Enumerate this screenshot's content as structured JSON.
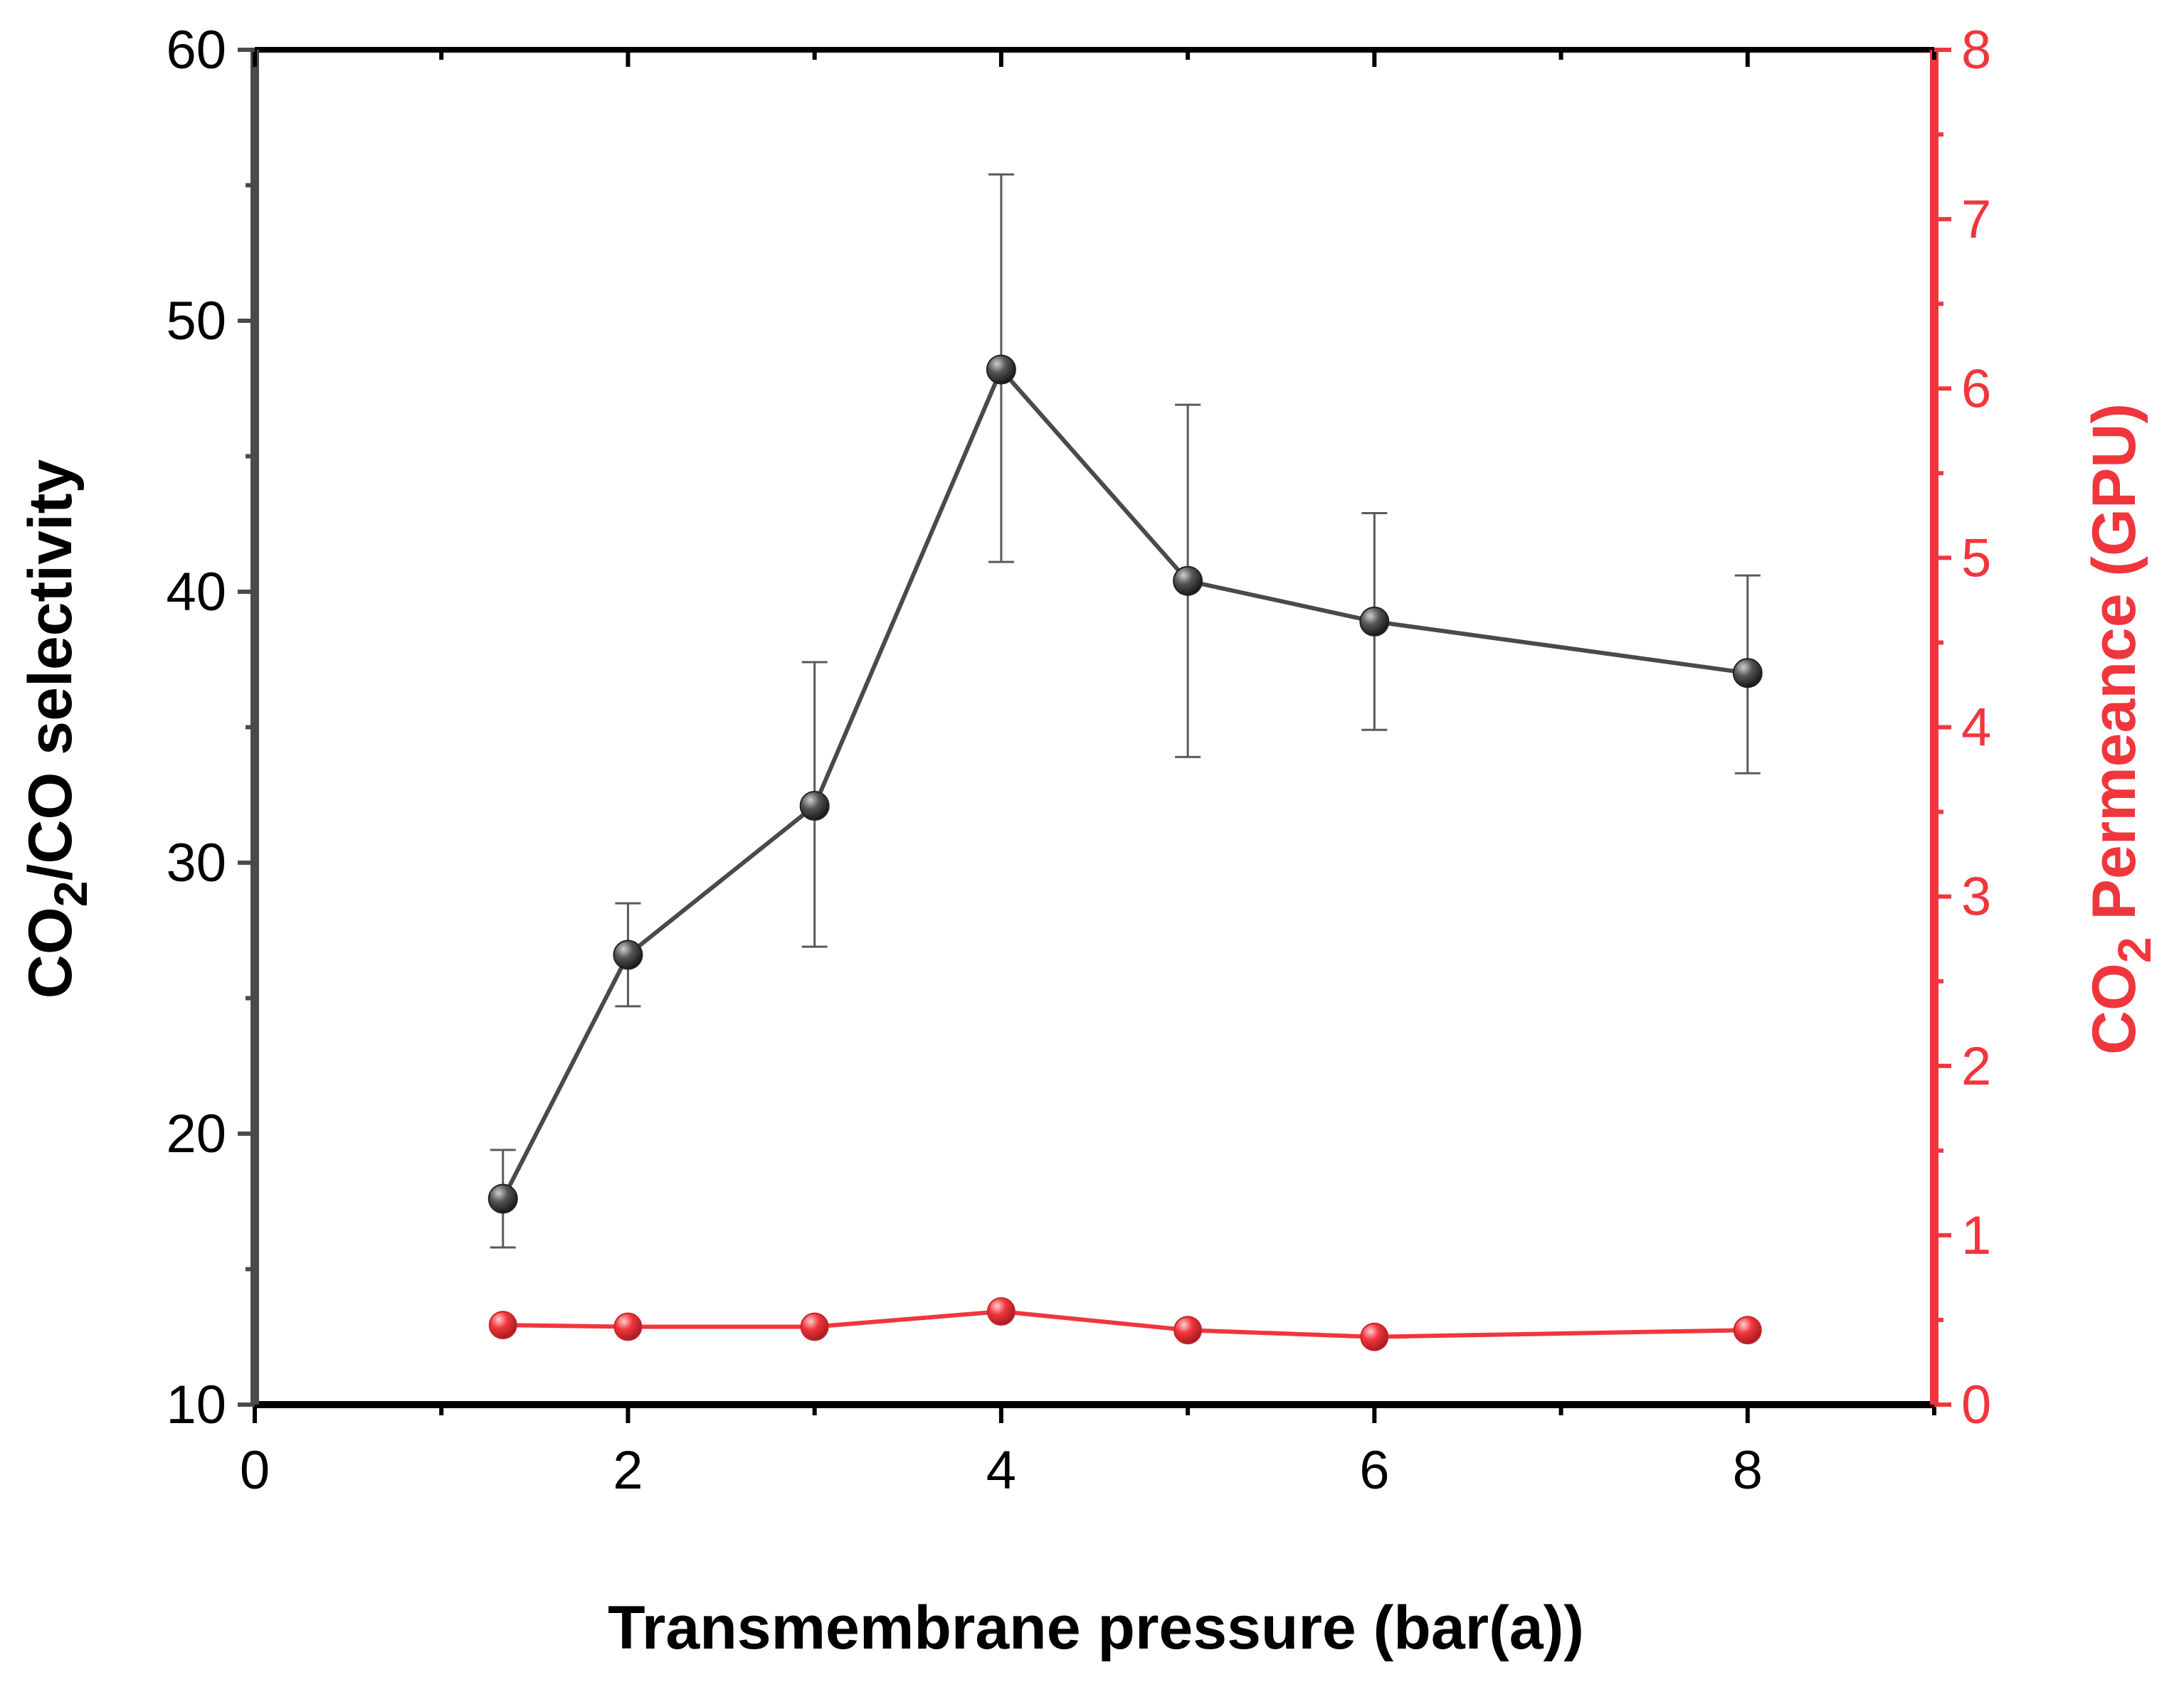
{
  "chart_data": {
    "type": "line",
    "title": "",
    "xlabel": "Transmembrane pressure (bar(a))",
    "ylabel_left": {
      "prefix": "CO",
      "sub": "2",
      "suffix": "/CO selectivity"
    },
    "ylabel_right": {
      "prefix": "CO",
      "sub": "2",
      "suffix": " Permeance (GPU)"
    },
    "xlim": [
      0,
      9
    ],
    "ylim_left": [
      10,
      60
    ],
    "ylim_right": [
      0,
      8
    ],
    "x_ticks": [
      0,
      2,
      4,
      6,
      8
    ],
    "x_tick_labels": [
      "0",
      "2",
      "4",
      "6",
      "8"
    ],
    "y_left_ticks": [
      10,
      20,
      30,
      40,
      50,
      60
    ],
    "y_left_tick_labels": [
      "10",
      "20",
      "30",
      "40",
      "50",
      "60"
    ],
    "y_right_ticks": [
      0,
      1,
      2,
      3,
      4,
      5,
      6,
      7,
      8
    ],
    "y_right_tick_labels": [
      "0",
      "1",
      "2",
      "3",
      "4",
      "5",
      "6",
      "7",
      "8"
    ],
    "series": [
      {
        "name": "CO2/CO selectivity",
        "axis": "left",
        "color": "#4a4a4a",
        "x": [
          1.33,
          2,
          3,
          4,
          5,
          6,
          8
        ],
        "values": [
          17.6,
          26.6,
          32.1,
          48.2,
          40.4,
          38.9,
          37.0
        ],
        "err_low": [
          15.8,
          24.7,
          26.9,
          41.1,
          33.9,
          34.9,
          33.3
        ],
        "err_high": [
          19.4,
          28.5,
          37.4,
          55.4,
          46.9,
          42.9,
          40.6
        ]
      },
      {
        "name": "CO2 Permeance",
        "axis": "right",
        "color": "#f0363d",
        "x": [
          1.33,
          2,
          3,
          4,
          5,
          6,
          8
        ],
        "values": [
          0.47,
          0.46,
          0.46,
          0.55,
          0.44,
          0.4,
          0.44
        ]
      }
    ]
  }
}
